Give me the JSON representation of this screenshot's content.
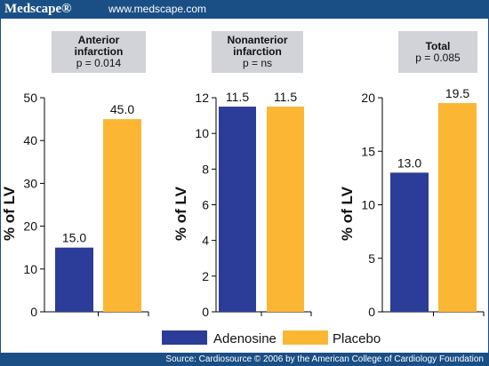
{
  "header": {
    "logo": "Medscape®",
    "url": "www.medscape.com"
  },
  "footer": {
    "source": "Source: Cardiosource © 2006 by the American College of Cardiology Foundation"
  },
  "colors": {
    "header": "#1a4f86",
    "adenosine": "#2b3d98",
    "placebo": "#fbb634",
    "panel_label_bg": "#d2d3d8"
  },
  "legend": [
    {
      "name": "Adenosine",
      "color": "#2b3d98"
    },
    {
      "name": "Placebo",
      "color": "#fbb634"
    }
  ],
  "chart_data": [
    {
      "type": "bar",
      "label_lines": [
        "Anterior",
        "infarction",
        "p = 0.014"
      ],
      "ylabel": "% of LV",
      "ylim": [
        0,
        50
      ],
      "yticks": [
        0,
        10,
        20,
        30,
        40,
        50
      ],
      "series": [
        {
          "name": "Adenosine",
          "values": [
            15.0
          ],
          "labels": [
            "15.0"
          ]
        },
        {
          "name": "Placebo",
          "values": [
            45.0
          ],
          "labels": [
            "45.0"
          ]
        }
      ]
    },
    {
      "type": "bar",
      "label_lines": [
        "Nonanterior",
        "infarction",
        "p = ns"
      ],
      "ylabel": "% of LV",
      "ylim": [
        0,
        12
      ],
      "yticks": [
        0,
        2,
        4,
        6,
        8,
        10,
        12
      ],
      "series": [
        {
          "name": "Adenosine",
          "values": [
            11.5
          ],
          "labels": [
            "11.5"
          ]
        },
        {
          "name": "Placebo",
          "values": [
            11.5
          ],
          "labels": [
            "11.5"
          ]
        }
      ]
    },
    {
      "type": "bar",
      "label_lines": [
        "Total",
        "p = 0.085"
      ],
      "ylabel": "% of LV",
      "ylim": [
        0,
        20
      ],
      "yticks": [
        0,
        5,
        10,
        15,
        20
      ],
      "series": [
        {
          "name": "Adenosine",
          "values": [
            13.0
          ],
          "labels": [
            "13.0"
          ]
        },
        {
          "name": "Placebo",
          "values": [
            19.5
          ],
          "labels": [
            "19.5"
          ]
        }
      ]
    }
  ]
}
